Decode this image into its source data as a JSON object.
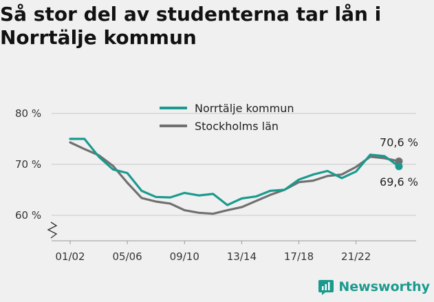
{
  "title": "Så stor del av studenterna tar lån i Norrtälje kommun",
  "brand": {
    "name": "Newsworthy",
    "icon": "newsworthy-logo-icon"
  },
  "colors": {
    "norrtalje": "#1a9a8e",
    "stockholm": "#707070",
    "grid": "#c8c8c8",
    "background": "#f0f0f0"
  },
  "chart_data": {
    "type": "line",
    "title": "Så stor del av studenterna tar lån i Norrtälje kommun",
    "xlabel": "",
    "ylabel": "",
    "ylim": [
      55,
      82
    ],
    "y_ticks": [
      60,
      70,
      80
    ],
    "y_tick_labels": [
      "60 %",
      "70 %",
      "80 %"
    ],
    "x_tick_labels": [
      "01/02",
      "05/06",
      "09/10",
      "13/14",
      "17/18",
      "21/22"
    ],
    "x": [
      "01/02",
      "02/03",
      "03/04",
      "04/05",
      "05/06",
      "06/07",
      "07/08",
      "08/09",
      "09/10",
      "10/11",
      "11/12",
      "12/13",
      "13/14",
      "14/15",
      "15/16",
      "16/17",
      "17/18",
      "18/19",
      "19/20",
      "20/21",
      "21/22",
      "22/23",
      "23/24",
      "24/25"
    ],
    "axis_break": true,
    "grid": true,
    "legend_position": "top-center",
    "series": [
      {
        "name": "Norrtälje kommun",
        "color": "#1a9a8e",
        "values": [
          75.0,
          75.0,
          71.5,
          69.0,
          68.3,
          64.8,
          63.6,
          63.5,
          64.4,
          63.9,
          64.2,
          62.0,
          63.3,
          63.7,
          64.8,
          65.0,
          67.0,
          68.0,
          68.7,
          67.3,
          68.6,
          71.9,
          71.6,
          69.6
        ],
        "end_label": "69,6 %"
      },
      {
        "name": "Stockholms län",
        "color": "#707070",
        "values": [
          74.3,
          73.0,
          71.8,
          69.7,
          66.4,
          63.4,
          62.7,
          62.3,
          61.0,
          60.5,
          60.3,
          61.0,
          61.6,
          62.8,
          64.0,
          65.0,
          66.5,
          66.8,
          67.7,
          68.0,
          69.5,
          71.5,
          71.2,
          70.6
        ],
        "end_label": "70,6 %"
      }
    ]
  }
}
